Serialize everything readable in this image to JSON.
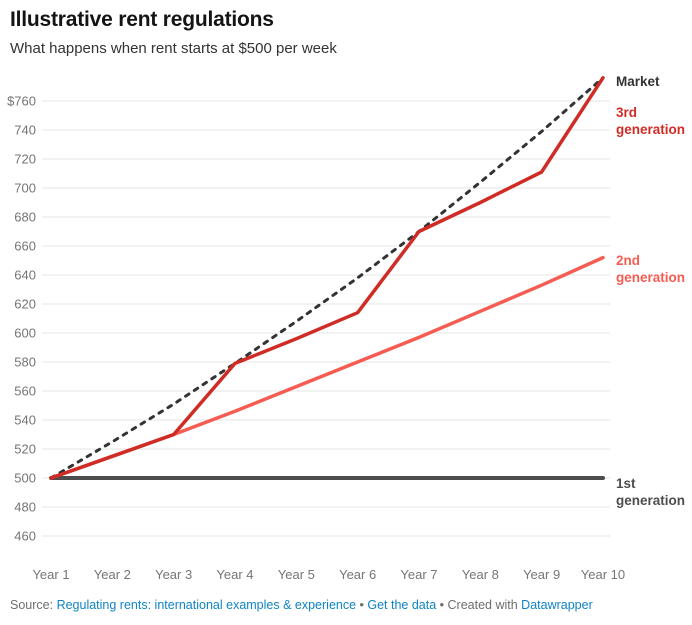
{
  "header": {
    "title": "Illustrative rent regulations",
    "subtitle": "What happens when rent starts at $500 per week"
  },
  "chart_data": {
    "type": "line",
    "title": "Illustrative rent regulations",
    "subtitle": "What happens when rent starts at $500 per week",
    "categories": [
      "Year 1",
      "Year 2",
      "Year 3",
      "Year 4",
      "Year 5",
      "Year 6",
      "Year 7",
      "Year 8",
      "Year 9",
      "Year 10"
    ],
    "series": [
      {
        "name": "Market",
        "color": "#333333",
        "dashed": true,
        "width": 3,
        "values": [
          500,
          525,
          551,
          579,
          608,
          638,
          670,
          704,
          739,
          776
        ]
      },
      {
        "name": "3rd generation",
        "color": "#d02c26",
        "dashed": false,
        "width": 3.5,
        "values": [
          500,
          515,
          530,
          579,
          596,
          614,
          670,
          690,
          711,
          776
        ]
      },
      {
        "name": "2nd generation",
        "color": "#f65c52",
        "dashed": false,
        "width": 3.5,
        "values": [
          500,
          515,
          530,
          546,
          563,
          580,
          597,
          615,
          633,
          652
        ]
      },
      {
        "name": "1st generation",
        "color": "#4d4d4d",
        "dashed": false,
        "width": 4,
        "values": [
          500,
          500,
          500,
          500,
          500,
          500,
          500,
          500,
          500,
          500
        ]
      }
    ],
    "ylim": [
      460,
      780
    ],
    "ytick_values": [
      460,
      480,
      500,
      520,
      540,
      560,
      580,
      600,
      620,
      640,
      660,
      680,
      700,
      720,
      740,
      760
    ],
    "ytick_labels": [
      "460",
      "480",
      "500",
      "520",
      "540",
      "560",
      "580",
      "600",
      "620",
      "640",
      "660",
      "680",
      "700",
      "720",
      "740",
      "$760"
    ],
    "grid": "horizontal",
    "legend_position": "right-of-lines",
    "currency_prefix": "$"
  },
  "legend": {
    "market": "Market",
    "gen3": "3rd generation",
    "gen2": "2nd generation",
    "gen1": "1st generation"
  },
  "footer": {
    "source_prefix": "Source: ",
    "source_link": "Regulating rents: international examples & experience",
    "separator": " • ",
    "get_data_link": "Get the data",
    "created_with": "Created with ",
    "datawrapper_link": "Datawrapper"
  },
  "colors": {
    "market_line": "#333333",
    "gen3_line": "#d02c26",
    "gen2_line": "#f65c52",
    "gen1_line": "#4d4d4d",
    "link_blue": "#0f83c4",
    "axis_gray": "#757575",
    "gridline": "#e6e6e6"
  }
}
